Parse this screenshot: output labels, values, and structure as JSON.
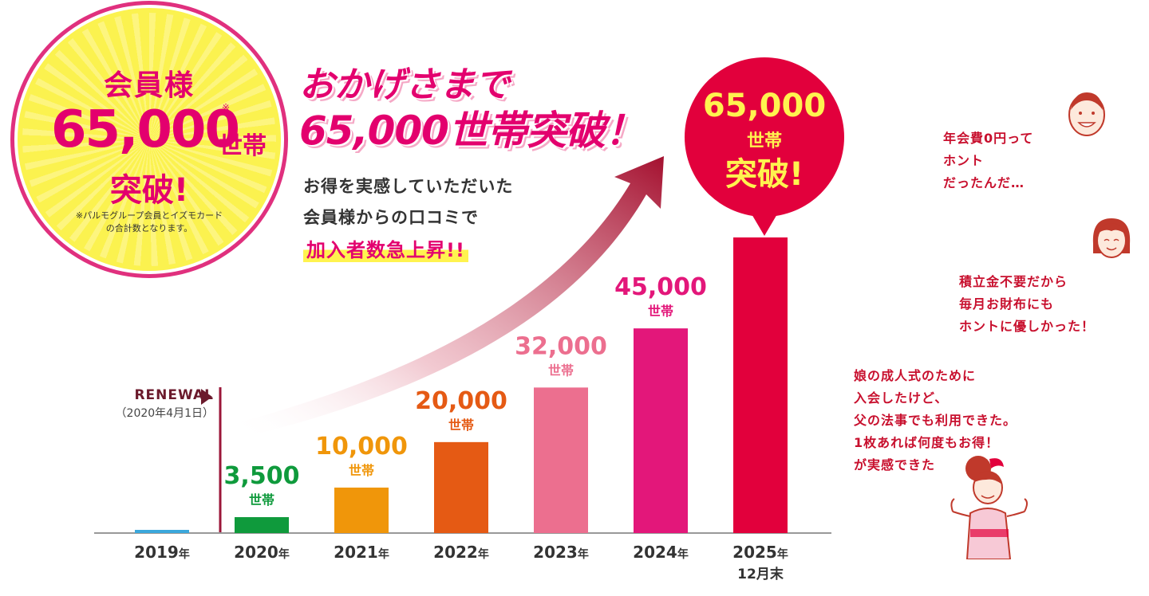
{
  "badge": {
    "line1": "会員様",
    "number": "65,000",
    "mark": "※",
    "unit": "世帯",
    "line3": "突破!",
    "note_line1": "※パルモグループ会員とイズモカード",
    "note_line2": "の合計数となります。"
  },
  "headline": {
    "line1": "おかげさまで",
    "line2": "65,000世帯突破！"
  },
  "subtext": {
    "line1": "お得を実感していただいた",
    "line2": "会員様からの口コミで",
    "line3": "加入者数急上昇!!"
  },
  "renewal": {
    "label": "RENEWAL",
    "date": "（2020年4月1日）"
  },
  "callout": {
    "number": "65,000",
    "unit": "世帯",
    "text": "突破!"
  },
  "voices": {
    "v1": [
      "年会費0円って",
      "ホント",
      "だったんだ…"
    ],
    "v2": [
      "積立金不要だから",
      "毎月お財布にも",
      "ホントに優しかった！"
    ],
    "v3": [
      "娘の成人式のために",
      "入会したけど、",
      "父の法事でも利用できた。",
      "1枚あれば何度もお得！",
      "が実感できた"
    ]
  },
  "colors": {
    "accent": "#e3006e",
    "badge_yellow": "#fbf24f",
    "arrow": "#b5173a"
  },
  "chart_data": {
    "type": "bar",
    "categories": [
      "2019",
      "2020",
      "2021",
      "2022",
      "2023",
      "2024",
      "2025"
    ],
    "category_suffixes": [
      "年",
      "年",
      "年",
      "年",
      "年",
      "年",
      "年"
    ],
    "category_subline": [
      "",
      "",
      "",
      "",
      "",
      "",
      "12月末"
    ],
    "values": [
      300,
      3500,
      10000,
      20000,
      32000,
      45000,
      65000
    ],
    "value_labels": [
      "",
      "3,500",
      "10,000",
      "20,000",
      "32,000",
      "45,000",
      ""
    ],
    "value_units": [
      "",
      "世帯",
      "世帯",
      "世帯",
      "世帯",
      "世帯",
      ""
    ],
    "bar_colors": [
      "#3ba8dc",
      "#0f9a3c",
      "#f0960a",
      "#e55a14",
      "#ec6f8f",
      "#e3177a",
      "#e2003c"
    ],
    "label_colors": [
      "#3ba8dc",
      "#0f9a3c",
      "#f0960a",
      "#e55a14",
      "#ec6f8f",
      "#e3177a",
      "#e2003c"
    ],
    "ylim": [
      0,
      65000
    ],
    "grid": false,
    "title": "",
    "xlabel": "",
    "ylabel": ""
  }
}
